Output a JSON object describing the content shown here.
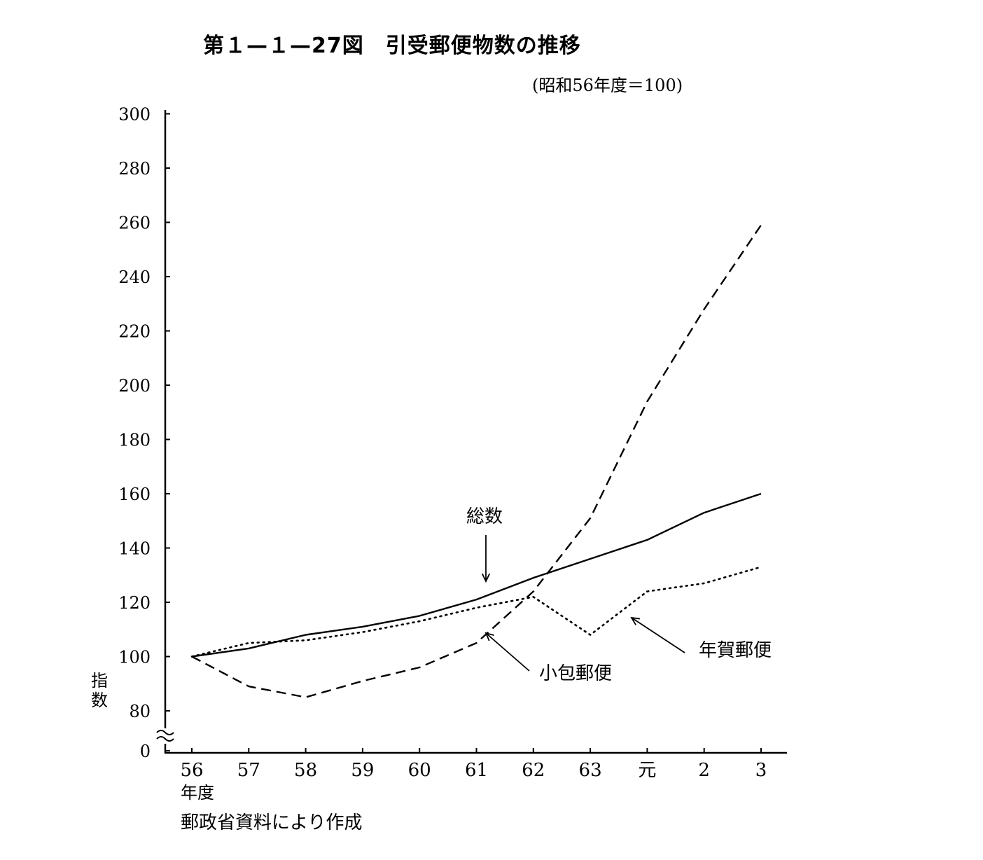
{
  "chart_data": {
    "type": "line",
    "title": "第１—１—27図　引受郵便物数の推移",
    "subtitle": "(昭和56年度＝100)",
    "ylabel": "指数",
    "xunit": "年度",
    "source": "郵政省資料により作成",
    "categories": [
      "56",
      "57",
      "58",
      "59",
      "60",
      "61",
      "62",
      "63",
      "元",
      "2",
      "3"
    ],
    "y_ticks": [
      0,
      80,
      100,
      120,
      140,
      160,
      180,
      200,
      220,
      240,
      260,
      280,
      300
    ],
    "ylim": [
      0,
      300
    ],
    "axis_break": "between 0 and 80",
    "grid": false,
    "legend": "inline labels with arrows",
    "series": [
      {
        "name": "総数",
        "style": "solid",
        "values": [
          100,
          103,
          108,
          111,
          115,
          121,
          129,
          136,
          143,
          153,
          160
        ]
      },
      {
        "name": "年賀郵便",
        "style": "dotted",
        "values": [
          100,
          105,
          106,
          109,
          113,
          118,
          122,
          108,
          124,
          127,
          133
        ]
      },
      {
        "name": "小包郵便",
        "style": "dashed",
        "values": [
          100,
          89,
          85,
          91,
          96,
          105,
          124,
          151,
          194,
          228,
          259
        ]
      }
    ]
  }
}
